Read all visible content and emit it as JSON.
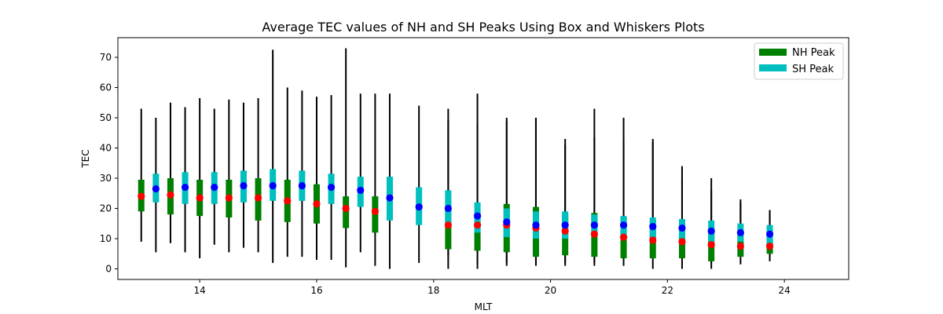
{
  "chart_data": {
    "type": "box",
    "title": "Average TEC values of NH and SH Peaks Using Box and Whiskers Plots",
    "xlabel": "MLT",
    "ylabel": "TEC",
    "xlim": [
      12.6,
      25.1
    ],
    "ylim": [
      -3.5,
      76.5
    ],
    "xticks": [
      14,
      16,
      18,
      20,
      22,
      24
    ],
    "yticks": [
      0,
      10,
      20,
      30,
      40,
      50,
      60,
      70
    ],
    "grid": false,
    "legend": {
      "placement": "top-right",
      "entries": [
        {
          "label": "NH Peak",
          "color": "#008000"
        },
        {
          "label": "SH Peak",
          "color": "#00bfbf"
        }
      ]
    },
    "series": [
      {
        "name": "NH Peak",
        "box_color": "#008000",
        "median_color": "#ff0000",
        "boxes": [
          {
            "x": 13.0,
            "q1": 19.0,
            "q3": 29.5,
            "median": 24.0,
            "wlo": 9.0,
            "whi": 53.0
          },
          {
            "x": 13.5,
            "q1": 18.0,
            "q3": 30.0,
            "median": 24.5,
            "wlo": 8.5,
            "whi": 55.0
          },
          {
            "x": 14.0,
            "q1": 17.5,
            "q3": 29.5,
            "median": 23.5,
            "wlo": 3.5,
            "whi": 56.5
          },
          {
            "x": 14.5,
            "q1": 17.0,
            "q3": 29.5,
            "median": 23.5,
            "wlo": 5.5,
            "whi": 56.0
          },
          {
            "x": 15.0,
            "q1": 16.0,
            "q3": 30.0,
            "median": 23.5,
            "wlo": 5.5,
            "whi": 56.5
          },
          {
            "x": 15.5,
            "q1": 15.5,
            "q3": 29.5,
            "median": 22.5,
            "wlo": 4.0,
            "whi": 60.0
          },
          {
            "x": 16.0,
            "q1": 15.0,
            "q3": 28.0,
            "median": 21.5,
            "wlo": 3.0,
            "whi": 57.0
          },
          {
            "x": 16.5,
            "q1": 13.5,
            "q3": 24.0,
            "median": 20.0,
            "wlo": 0.5,
            "whi": 73.0
          },
          {
            "x": 17.0,
            "q1": 12.0,
            "q3": 24.0,
            "median": 19.0,
            "wlo": 1.0,
            "whi": 58.0
          },
          {
            "x": 18.25,
            "q1": 6.5,
            "q3": 19.5,
            "median": 14.5,
            "wlo": 0.0,
            "whi": 49.0
          },
          {
            "x": 18.75,
            "q1": 6.0,
            "q3": 19.0,
            "median": 14.5,
            "wlo": 0.0,
            "whi": 58.0
          },
          {
            "x": 19.25,
            "q1": 5.5,
            "q3": 21.5,
            "median": 14.5,
            "wlo": 1.0,
            "whi": 50.0
          },
          {
            "x": 19.75,
            "q1": 4.0,
            "q3": 20.5,
            "median": 13.5,
            "wlo": 1.0,
            "whi": 50.0
          },
          {
            "x": 20.25,
            "q1": 4.5,
            "q3": 18.0,
            "median": 12.5,
            "wlo": 1.0,
            "whi": 43.0
          },
          {
            "x": 20.75,
            "q1": 4.0,
            "q3": 18.5,
            "median": 11.5,
            "wlo": 1.0,
            "whi": 53.0
          },
          {
            "x": 21.25,
            "q1": 3.5,
            "q3": 17.0,
            "median": 10.5,
            "wlo": 1.0,
            "whi": 50.0
          },
          {
            "x": 21.75,
            "q1": 3.5,
            "q3": 16.0,
            "median": 9.5,
            "wlo": 0.0,
            "whi": 43.0
          },
          {
            "x": 22.25,
            "q1": 3.5,
            "q3": 15.0,
            "median": 9.0,
            "wlo": 0.0,
            "whi": 34.0
          },
          {
            "x": 22.75,
            "q1": 2.5,
            "q3": 13.5,
            "median": 8.0,
            "wlo": 0.0,
            "whi": 30.0
          },
          {
            "x": 23.25,
            "q1": 4.0,
            "q3": 11.5,
            "median": 7.5,
            "wlo": 1.5,
            "whi": 22.0
          },
          {
            "x": 23.75,
            "q1": 5.0,
            "q3": 10.5,
            "median": 7.5,
            "wlo": 2.5,
            "whi": 19.0
          }
        ]
      },
      {
        "name": "SH Peak",
        "box_color": "#00bfbf",
        "median_color": "#0000ff",
        "boxes": [
          {
            "x": 13.25,
            "q1": 22.0,
            "q3": 31.5,
            "median": 26.5,
            "wlo": 5.5,
            "whi": 50.0
          },
          {
            "x": 13.75,
            "q1": 21.5,
            "q3": 32.0,
            "median": 27.0,
            "wlo": 5.5,
            "whi": 53.5
          },
          {
            "x": 14.25,
            "q1": 21.5,
            "q3": 32.0,
            "median": 27.0,
            "wlo": 8.0,
            "whi": 53.0
          },
          {
            "x": 14.75,
            "q1": 22.0,
            "q3": 32.5,
            "median": 27.5,
            "wlo": 7.0,
            "whi": 55.0
          },
          {
            "x": 15.25,
            "q1": 22.5,
            "q3": 33.0,
            "median": 27.5,
            "wlo": 2.0,
            "whi": 72.5
          },
          {
            "x": 15.75,
            "q1": 22.5,
            "q3": 32.5,
            "median": 27.5,
            "wlo": 4.0,
            "whi": 59.0
          },
          {
            "x": 16.25,
            "q1": 21.5,
            "q3": 31.5,
            "median": 27.0,
            "wlo": 3.0,
            "whi": 57.5
          },
          {
            "x": 16.75,
            "q1": 20.5,
            "q3": 30.5,
            "median": 26.0,
            "wlo": 5.5,
            "whi": 58.0
          },
          {
            "x": 17.25,
            "q1": 16.0,
            "q3": 30.5,
            "median": 23.5,
            "wlo": 0.0,
            "whi": 58.0
          },
          {
            "x": 17.75,
            "q1": 14.5,
            "q3": 27.0,
            "median": 20.5,
            "wlo": 2.0,
            "whi": 54.0
          },
          {
            "x": 18.25,
            "q1": 14.0,
            "q3": 26.0,
            "median": 20.0,
            "wlo": 4.0,
            "whi": 53.0
          },
          {
            "x": 18.75,
            "q1": 12.0,
            "q3": 22.0,
            "median": 17.5,
            "wlo": 2.0,
            "whi": 48.0
          },
          {
            "x": 19.25,
            "q1": 10.5,
            "q3": 20.0,
            "median": 15.5,
            "wlo": 2.0,
            "whi": 49.0
          },
          {
            "x": 19.75,
            "q1": 10.0,
            "q3": 19.0,
            "median": 14.5,
            "wlo": 2.0,
            "whi": 50.0
          },
          {
            "x": 20.25,
            "q1": 10.0,
            "q3": 19.0,
            "median": 14.5,
            "wlo": 2.0,
            "whi": 41.0
          },
          {
            "x": 20.75,
            "q1": 11.0,
            "q3": 18.0,
            "median": 14.5,
            "wlo": 2.0,
            "whi": 43.5
          },
          {
            "x": 21.25,
            "q1": 11.0,
            "q3": 17.5,
            "median": 14.5,
            "wlo": 4.0,
            "whi": 43.0
          },
          {
            "x": 21.75,
            "q1": 10.5,
            "q3": 17.0,
            "median": 14.0,
            "wlo": 4.0,
            "whi": 42.0
          },
          {
            "x": 22.25,
            "q1": 10.0,
            "q3": 16.5,
            "median": 13.5,
            "wlo": 4.0,
            "whi": 30.0
          },
          {
            "x": 22.75,
            "q1": 9.0,
            "q3": 16.0,
            "median": 12.5,
            "wlo": 2.0,
            "whi": 26.0
          },
          {
            "x": 23.25,
            "q1": 9.0,
            "q3": 15.0,
            "median": 12.0,
            "wlo": 5.0,
            "whi": 23.0
          },
          {
            "x": 23.75,
            "q1": 8.5,
            "q3": 14.5,
            "median": 11.5,
            "wlo": 4.0,
            "whi": 19.5
          }
        ]
      }
    ]
  }
}
